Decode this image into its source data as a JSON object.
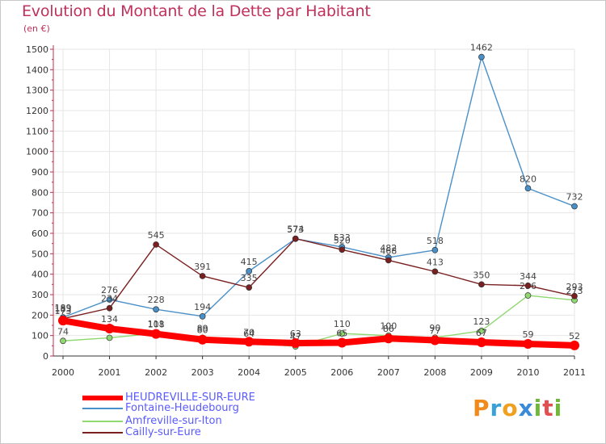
{
  "chart_data": {
    "type": "line",
    "title": "Evolution du Montant de la Dette par Habitant",
    "ylabel": "(en €)",
    "xlabel": "",
    "x": [
      "2000",
      "2001",
      "2002",
      "2003",
      "2004",
      "2005",
      "2006",
      "2007",
      "2008",
      "2009",
      "2010",
      "2011"
    ],
    "ylim": [
      0,
      1500
    ],
    "yticks": [
      0,
      100,
      200,
      300,
      400,
      500,
      600,
      700,
      800,
      900,
      1000,
      1100,
      1200,
      1300,
      1400,
      1500
    ],
    "grid": true,
    "legend_position": "bottom-left",
    "series": [
      {
        "name": "HEUDREVILLE-SUR-EURE",
        "color": "#ff0000",
        "values": [
          173,
          134,
          108,
          80,
          70,
          63,
          65,
          86,
          77,
          67,
          59,
          52
        ]
      },
      {
        "name": "Fontaine-Heudebourg",
        "color": "#4a90c8",
        "values": [
          189,
          276,
          228,
          194,
          415,
          573,
          533,
          482,
          518,
          1462,
          820,
          732
        ]
      },
      {
        "name": "Amfreville-sur-Iton",
        "color": "#90d870",
        "values": [
          74,
          89,
          111,
          89,
          64,
          47,
          110,
          100,
          90,
          123,
          296,
          273
        ]
      },
      {
        "name": "Cailly-sur-Eure",
        "color": "#7a2020",
        "values": [
          183,
          234,
          545,
          391,
          335,
          574,
          520,
          468,
          413,
          350,
          344,
          293
        ]
      }
    ]
  },
  "brand": {
    "p": "P",
    "r": "r",
    "o": "o",
    "x": "x",
    "i": "i",
    "t": "t",
    "i2": "i"
  }
}
